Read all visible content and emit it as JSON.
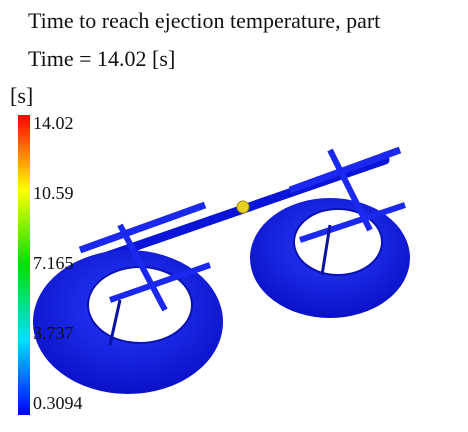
{
  "header": {
    "title": "Time to reach ejection temperature, part",
    "time": "Time = 14.02 [s]"
  },
  "legend": {
    "unit": "[s]",
    "ticks": [
      14.02,
      10.59,
      7.165,
      3.737,
      0.3094
    ]
  }
}
